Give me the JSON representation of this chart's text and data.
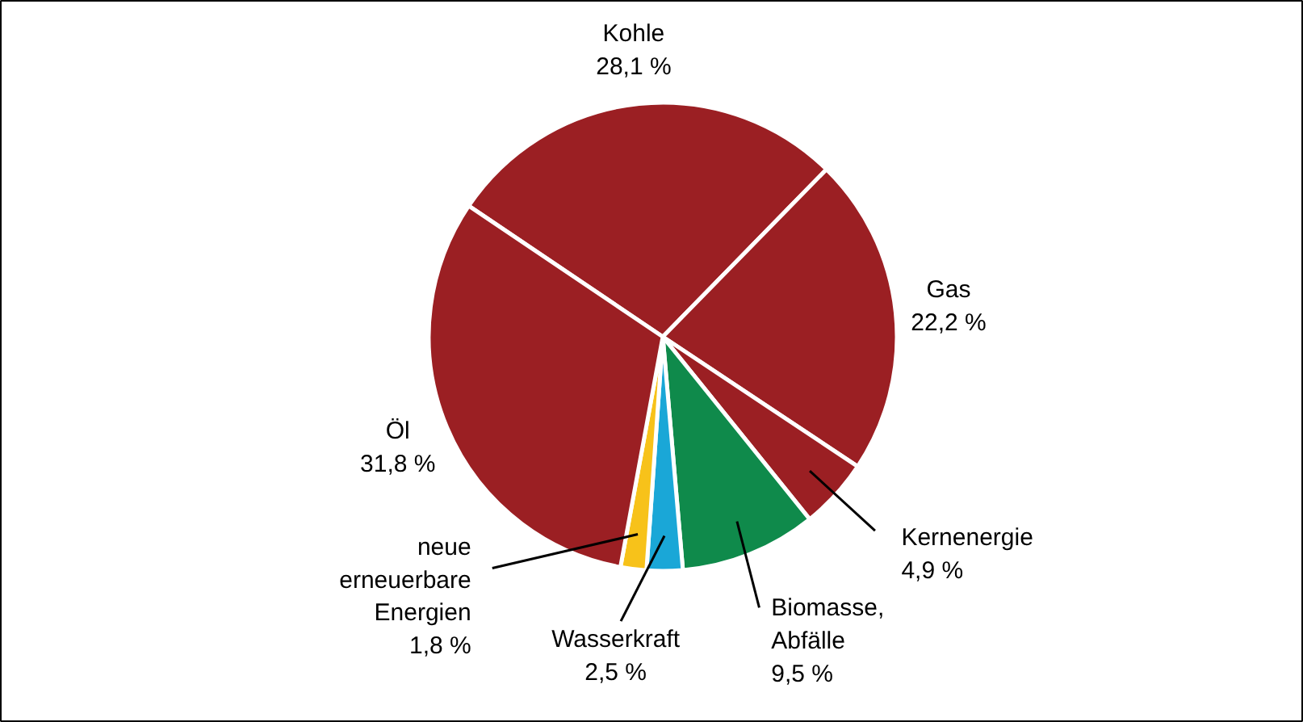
{
  "chart_data": {
    "type": "pie",
    "categories": [
      "Kohle",
      "Gas",
      "Kernenergie",
      "Biomasse, Abfälle",
      "Wasserkraft",
      "neue erneuerbare Energien",
      "Öl"
    ],
    "values": [
      28.1,
      22.2,
      4.9,
      9.5,
      2.5,
      1.8,
      31.8
    ],
    "colors": [
      "#9b1f23",
      "#9b1f23",
      "#9b1f23",
      "#0f8a4b",
      "#1aa7d7",
      "#f7c21a",
      "#9b1f23"
    ],
    "value_labels": [
      "28,1 %",
      "22,2 %",
      "4,9 %",
      "9,5 %",
      "2,5 %",
      "1,8 %",
      "31,8 %"
    ]
  }
}
